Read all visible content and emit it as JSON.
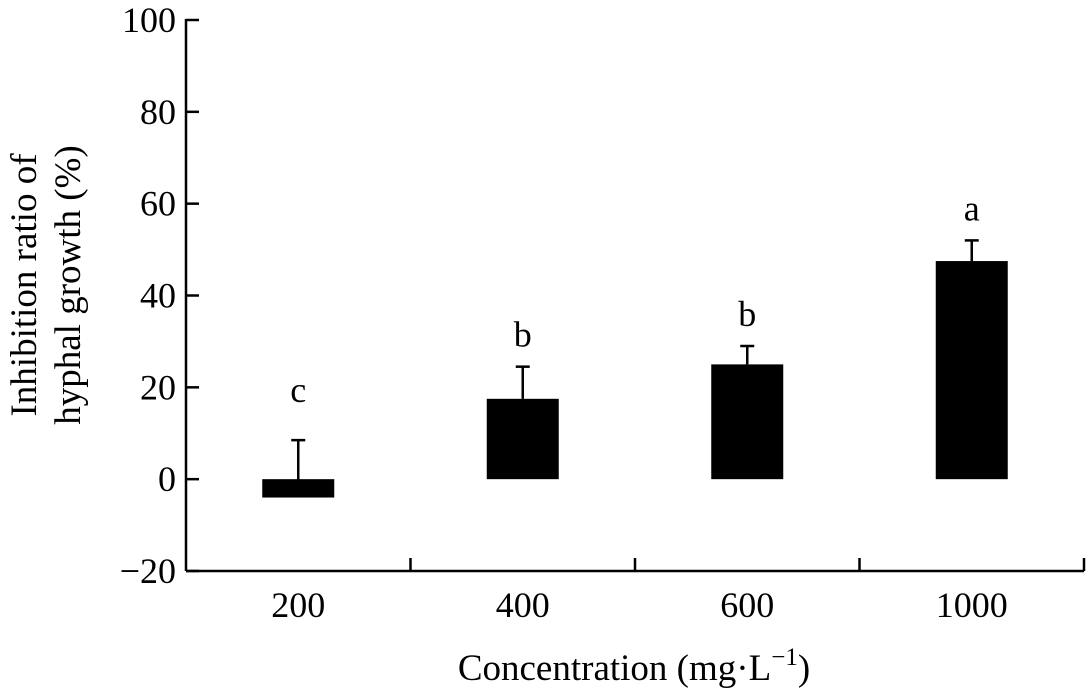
{
  "chart_data": {
    "type": "bar",
    "categories": [
      "200",
      "400",
      "600",
      "1000"
    ],
    "values": [
      -4.0,
      17.5,
      25.0,
      47.5
    ],
    "error_upper": [
      12.5,
      7.0,
      4.0,
      4.5
    ],
    "significance": [
      "c",
      "b",
      "b",
      "a"
    ],
    "ylabel_line1": "Inhibition ratio of",
    "ylabel_line2": "hyphal growth (%)",
    "xlabel_text": "Concentration (mg·L",
    "xlabel_sup": "−1",
    "xlabel_end": ")",
    "ylim": [
      -20,
      100
    ],
    "yticks": [
      -20,
      0,
      20,
      40,
      60,
      80,
      100
    ],
    "ytick_labels": [
      "−20",
      "0",
      "20",
      "40",
      "60",
      "80",
      "100"
    ],
    "bar_color": "#000000",
    "grid": false,
    "legend": "none"
  }
}
